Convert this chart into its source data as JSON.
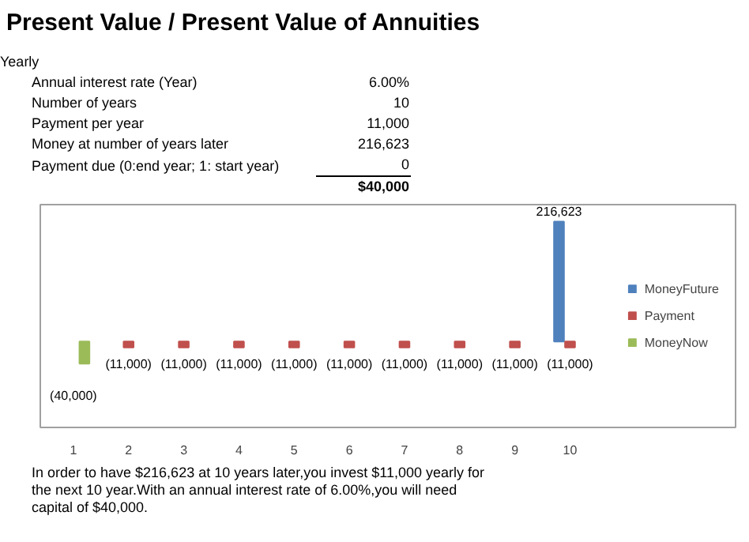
{
  "chart_data": {
    "type": "bar",
    "title": "Present Value / Present Value of Annuities",
    "categories": [
      "1",
      "2",
      "3",
      "4",
      "5",
      "6",
      "7",
      "8",
      "9",
      "10"
    ],
    "series": [
      {
        "name": "MoneyFuture",
        "color": "#4f81bd",
        "values": [
          null,
          null,
          null,
          null,
          null,
          null,
          null,
          null,
          null,
          216623
        ],
        "value_labels": [
          null,
          null,
          null,
          null,
          null,
          null,
          null,
          null,
          null,
          "216,623"
        ]
      },
      {
        "name": "Payment",
        "color": "#c0504d",
        "values": [
          null,
          -11000,
          -11000,
          -11000,
          -11000,
          -11000,
          -11000,
          -11000,
          -11000,
          -11000
        ],
        "value_labels": [
          null,
          "(11,000)",
          "(11,000)",
          "(11,000)",
          "(11,000)",
          "(11,000)",
          "(11,000)",
          "(11,000)",
          "(11,000)",
          "(11,000)"
        ]
      },
      {
        "name": "MoneyNow",
        "color": "#9bbb59",
        "values": [
          -40000,
          null,
          null,
          null,
          null,
          null,
          null,
          null,
          null,
          null
        ],
        "value_labels": [
          "(40,000)",
          null,
          null,
          null,
          null,
          null,
          null,
          null,
          null,
          null
        ]
      }
    ],
    "legend": "right",
    "grid": false,
    "annotations": [
      "Yearly",
      "Annual interest rate (Year)",
      "6.00%",
      "Number of years",
      "10",
      "Payment per year",
      "11,000",
      "Money at number of years later",
      "216,623",
      "Payment due (0:end year; 1: start year)",
      "0",
      "$40,000",
      "In order to have $216,623 at 10 years later,you invest $11,000 yearly for the next 10 year.With an annual interest rate of 6.00%,you will need capital of $40,000."
    ]
  }
}
